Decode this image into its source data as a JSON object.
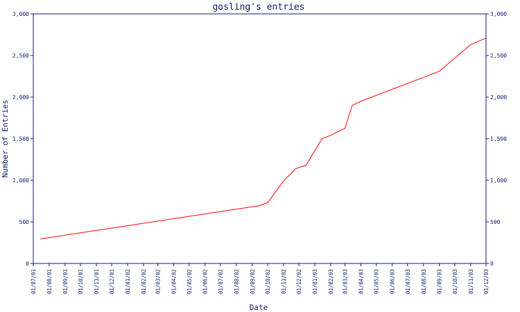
{
  "chart_data": {
    "type": "line",
    "title": "gosling's entries",
    "xlabel": "Date",
    "ylabel": "Number of Entries",
    "ylim": [
      0,
      3000
    ],
    "y_ticks": [
      "0",
      "500",
      "1,000",
      "1,500",
      "2,000",
      "2,500",
      "3,000"
    ],
    "y_tick_values": [
      0,
      500,
      1000,
      1500,
      2000,
      2500,
      3000
    ],
    "x_tick_labels": [
      "01/07/01",
      "01/08/01",
      "01/09/01",
      "01/10/01",
      "01/11/01",
      "01/12/01",
      "01/01/02",
      "01/02/02",
      "01/03/02",
      "01/04/02",
      "01/05/02",
      "01/06/02",
      "01/07/02",
      "01/08/02",
      "01/09/02",
      "01/10/02",
      "01/11/02",
      "01/12/02",
      "01/01/03",
      "01/02/03",
      "01/03/03",
      "01/04/03",
      "01/05/03",
      "01/06/03",
      "01/07/03",
      "01/08/03",
      "01/09/03",
      "01/10/03",
      "01/11/03",
      "01/12/03"
    ],
    "grid": false,
    "right_axis": true,
    "series": [
      {
        "color": "#ff0000",
        "x": [
          "2001-07-15",
          "2002-09-15",
          "2002-10-01",
          "2002-11-01",
          "2002-11-25",
          "2002-12-15",
          "2003-01-15",
          "2003-02-01",
          "2003-03-01",
          "2003-03-15",
          "2003-04-01",
          "2003-09-01",
          "2003-10-01",
          "2003-11-01",
          "2003-12-01"
        ],
        "y": [
          295,
          695,
          730,
          990,
          1140,
          1180,
          1500,
          1540,
          1625,
          1900,
          1950,
          2310,
          2470,
          2630,
          2710
        ]
      }
    ]
  }
}
